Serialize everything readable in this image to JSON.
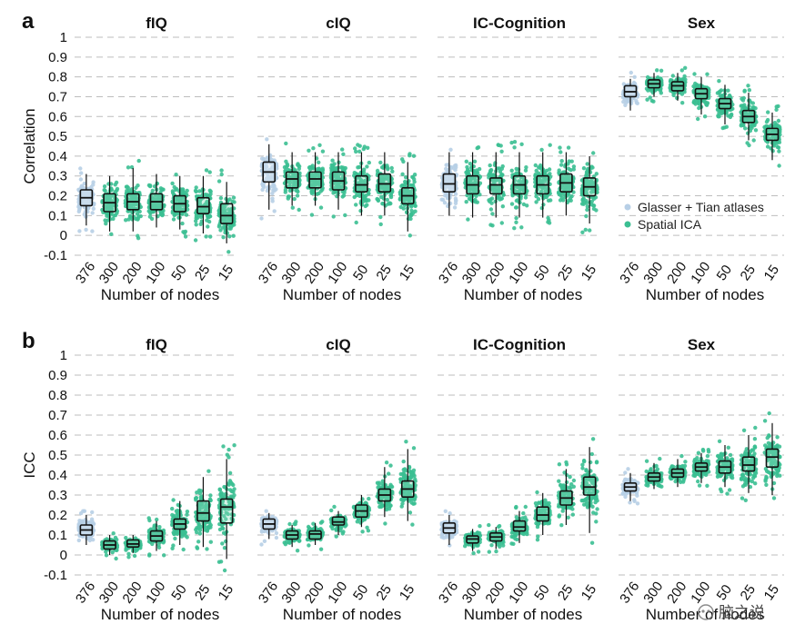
{
  "figure": {
    "watermark": "脑之说",
    "colors": {
      "glasser": "#b7cfe6",
      "spatial_ica": "#3bbf92",
      "grid": "#bdbdbd",
      "box_stroke": "#111111"
    },
    "legend": {
      "glasser_label": "Glasser + Tian atlases",
      "ica_label": "Spatial ICA"
    }
  },
  "chart_data": [
    {
      "type": "box",
      "label": "a",
      "ylabel": "Correlation",
      "ylim": [
        -0.1,
        1
      ],
      "yticks": [
        "1",
        "0.9",
        "0.8",
        "0.7",
        "0.6",
        "0.5",
        "0.4",
        "0.3",
        "0.2",
        "0.1",
        "0",
        "-0.1"
      ],
      "xlabel": "Number of nodes",
      "categories": [
        "376",
        "300",
        "200",
        "100",
        "50",
        "25",
        "15"
      ],
      "category_source": [
        "Glasser + Tian atlases",
        "Spatial ICA",
        "Spatial ICA",
        "Spatial ICA",
        "Spatial ICA",
        "Spatial ICA",
        "Spatial ICA"
      ],
      "panels": [
        {
          "title": "fIQ",
          "boxes": [
            {
              "q1": 0.15,
              "median": 0.19,
              "q3": 0.23,
              "wlo": 0.05,
              "whi": 0.31
            },
            {
              "q1": 0.12,
              "median": 0.165,
              "q3": 0.21,
              "wlo": 0.02,
              "whi": 0.3
            },
            {
              "q1": 0.13,
              "median": 0.17,
              "q3": 0.21,
              "wlo": 0.02,
              "whi": 0.34
            },
            {
              "q1": 0.13,
              "median": 0.17,
              "q3": 0.21,
              "wlo": 0.04,
              "whi": 0.31
            },
            {
              "q1": 0.12,
              "median": 0.16,
              "q3": 0.2,
              "wlo": 0.03,
              "whi": 0.3
            },
            {
              "q1": 0.11,
              "median": 0.145,
              "q3": 0.19,
              "wlo": 0.01,
              "whi": 0.3
            },
            {
              "q1": 0.06,
              "median": 0.1,
              "q3": 0.16,
              "wlo": -0.04,
              "whi": 0.27
            }
          ]
        },
        {
          "title": "cIQ",
          "boxes": [
            {
              "q1": 0.27,
              "median": 0.32,
              "q3": 0.37,
              "wlo": 0.13,
              "whi": 0.46
            },
            {
              "q1": 0.24,
              "median": 0.285,
              "q3": 0.32,
              "wlo": 0.15,
              "whi": 0.42
            },
            {
              "q1": 0.24,
              "median": 0.285,
              "q3": 0.32,
              "wlo": 0.15,
              "whi": 0.42
            },
            {
              "q1": 0.23,
              "median": 0.275,
              "q3": 0.32,
              "wlo": 0.13,
              "whi": 0.42
            },
            {
              "q1": 0.22,
              "median": 0.255,
              "q3": 0.3,
              "wlo": 0.1,
              "whi": 0.42
            },
            {
              "q1": 0.22,
              "median": 0.26,
              "q3": 0.31,
              "wlo": 0.1,
              "whi": 0.42
            },
            {
              "q1": 0.16,
              "median": 0.2,
              "q3": 0.24,
              "wlo": 0.02,
              "whi": 0.37
            }
          ]
        },
        {
          "title": "IC-Cognition",
          "boxes": [
            {
              "q1": 0.22,
              "median": 0.26,
              "q3": 0.31,
              "wlo": 0.1,
              "whi": 0.42
            },
            {
              "q1": 0.21,
              "median": 0.255,
              "q3": 0.3,
              "wlo": 0.09,
              "whi": 0.42
            },
            {
              "q1": 0.21,
              "median": 0.255,
              "q3": 0.29,
              "wlo": 0.09,
              "whi": 0.42
            },
            {
              "q1": 0.21,
              "median": 0.255,
              "q3": 0.3,
              "wlo": 0.09,
              "whi": 0.42
            },
            {
              "q1": 0.21,
              "median": 0.255,
              "q3": 0.3,
              "wlo": 0.09,
              "whi": 0.42
            },
            {
              "q1": 0.22,
              "median": 0.265,
              "q3": 0.31,
              "wlo": 0.1,
              "whi": 0.42
            },
            {
              "q1": 0.2,
              "median": 0.245,
              "q3": 0.29,
              "wlo": 0.06,
              "whi": 0.4
            }
          ]
        },
        {
          "title": "Sex",
          "boxes": [
            {
              "q1": 0.7,
              "median": 0.725,
              "q3": 0.755,
              "wlo": 0.63,
              "whi": 0.79
            },
            {
              "q1": 0.745,
              "median": 0.765,
              "q3": 0.785,
              "wlo": 0.7,
              "whi": 0.82
            },
            {
              "q1": 0.73,
              "median": 0.755,
              "q3": 0.775,
              "wlo": 0.68,
              "whi": 0.82
            },
            {
              "q1": 0.69,
              "median": 0.715,
              "q3": 0.74,
              "wlo": 0.61,
              "whi": 0.8
            },
            {
              "q1": 0.64,
              "median": 0.665,
              "q3": 0.69,
              "wlo": 0.56,
              "whi": 0.76
            },
            {
              "q1": 0.57,
              "median": 0.6,
              "q3": 0.63,
              "wlo": 0.48,
              "whi": 0.72
            },
            {
              "q1": 0.48,
              "median": 0.51,
              "q3": 0.54,
              "wlo": 0.38,
              "whi": 0.62
            }
          ]
        }
      ]
    },
    {
      "type": "box",
      "label": "b",
      "ylabel": "ICC",
      "ylim": [
        -0.1,
        1
      ],
      "yticks": [
        "1",
        "0.9",
        "0.8",
        "0.7",
        "0.6",
        "0.5",
        "0.4",
        "0.3",
        "0.2",
        "0.1",
        "0",
        "-0.1"
      ],
      "xlabel": "Number of nodes",
      "categories": [
        "376",
        "300",
        "200",
        "100",
        "50",
        "25",
        "15"
      ],
      "category_source": [
        "Glasser + Tian atlases",
        "Spatial ICA",
        "Spatial ICA",
        "Spatial ICA",
        "Spatial ICA",
        "Spatial ICA",
        "Spatial ICA"
      ],
      "panels": [
        {
          "title": "fIQ",
          "boxes": [
            {
              "q1": 0.1,
              "median": 0.125,
              "q3": 0.15,
              "wlo": 0.05,
              "whi": 0.2
            },
            {
              "q1": 0.03,
              "median": 0.05,
              "q3": 0.07,
              "wlo": 0.0,
              "whi": 0.1
            },
            {
              "q1": 0.04,
              "median": 0.055,
              "q3": 0.075,
              "wlo": 0.01,
              "whi": 0.1
            },
            {
              "q1": 0.07,
              "median": 0.095,
              "q3": 0.12,
              "wlo": 0.02,
              "whi": 0.17
            },
            {
              "q1": 0.13,
              "median": 0.155,
              "q3": 0.18,
              "wlo": 0.05,
              "whi": 0.27
            },
            {
              "q1": 0.17,
              "median": 0.21,
              "q3": 0.27,
              "wlo": 0.04,
              "whi": 0.39
            },
            {
              "q1": 0.16,
              "median": 0.24,
              "q3": 0.28,
              "wlo": -0.02,
              "whi": 0.48
            }
          ]
        },
        {
          "title": "cIQ",
          "boxes": [
            {
              "q1": 0.13,
              "median": 0.155,
              "q3": 0.18,
              "wlo": 0.08,
              "whi": 0.21
            },
            {
              "q1": 0.08,
              "median": 0.1,
              "q3": 0.12,
              "wlo": 0.04,
              "whi": 0.15
            },
            {
              "q1": 0.08,
              "median": 0.105,
              "q3": 0.12,
              "wlo": 0.05,
              "whi": 0.16
            },
            {
              "q1": 0.15,
              "median": 0.165,
              "q3": 0.19,
              "wlo": 0.1,
              "whi": 0.22
            },
            {
              "q1": 0.19,
              "median": 0.22,
              "q3": 0.25,
              "wlo": 0.14,
              "whi": 0.3
            },
            {
              "q1": 0.27,
              "median": 0.3,
              "q3": 0.33,
              "wlo": 0.19,
              "whi": 0.44
            },
            {
              "q1": 0.29,
              "median": 0.33,
              "q3": 0.37,
              "wlo": 0.17,
              "whi": 0.53
            }
          ]
        },
        {
          "title": "IC-Cognition",
          "boxes": [
            {
              "q1": 0.11,
              "median": 0.135,
              "q3": 0.16,
              "wlo": 0.05,
              "whi": 0.2
            },
            {
              "q1": 0.06,
              "median": 0.08,
              "q3": 0.095,
              "wlo": 0.02,
              "whi": 0.13
            },
            {
              "q1": 0.07,
              "median": 0.09,
              "q3": 0.11,
              "wlo": 0.03,
              "whi": 0.14
            },
            {
              "q1": 0.12,
              "median": 0.14,
              "q3": 0.17,
              "wlo": 0.06,
              "whi": 0.22
            },
            {
              "q1": 0.17,
              "median": 0.2,
              "q3": 0.24,
              "wlo": 0.1,
              "whi": 0.31
            },
            {
              "q1": 0.25,
              "median": 0.285,
              "q3": 0.32,
              "wlo": 0.15,
              "whi": 0.43
            },
            {
              "q1": 0.3,
              "median": 0.34,
              "q3": 0.39,
              "wlo": 0.11,
              "whi": 0.54
            }
          ]
        },
        {
          "title": "Sex",
          "boxes": [
            {
              "q1": 0.32,
              "median": 0.34,
              "q3": 0.36,
              "wlo": 0.27,
              "whi": 0.41
            },
            {
              "q1": 0.37,
              "median": 0.39,
              "q3": 0.41,
              "wlo": 0.33,
              "whi": 0.46
            },
            {
              "q1": 0.39,
              "median": 0.41,
              "q3": 0.43,
              "wlo": 0.34,
              "whi": 0.48
            },
            {
              "q1": 0.42,
              "median": 0.44,
              "q3": 0.46,
              "wlo": 0.36,
              "whi": 0.51
            },
            {
              "q1": 0.41,
              "median": 0.44,
              "q3": 0.47,
              "wlo": 0.34,
              "whi": 0.55
            },
            {
              "q1": 0.42,
              "median": 0.45,
              "q3": 0.49,
              "wlo": 0.31,
              "whi": 0.6
            },
            {
              "q1": 0.44,
              "median": 0.49,
              "q3": 0.53,
              "wlo": 0.3,
              "whi": 0.66
            }
          ]
        }
      ]
    }
  ]
}
